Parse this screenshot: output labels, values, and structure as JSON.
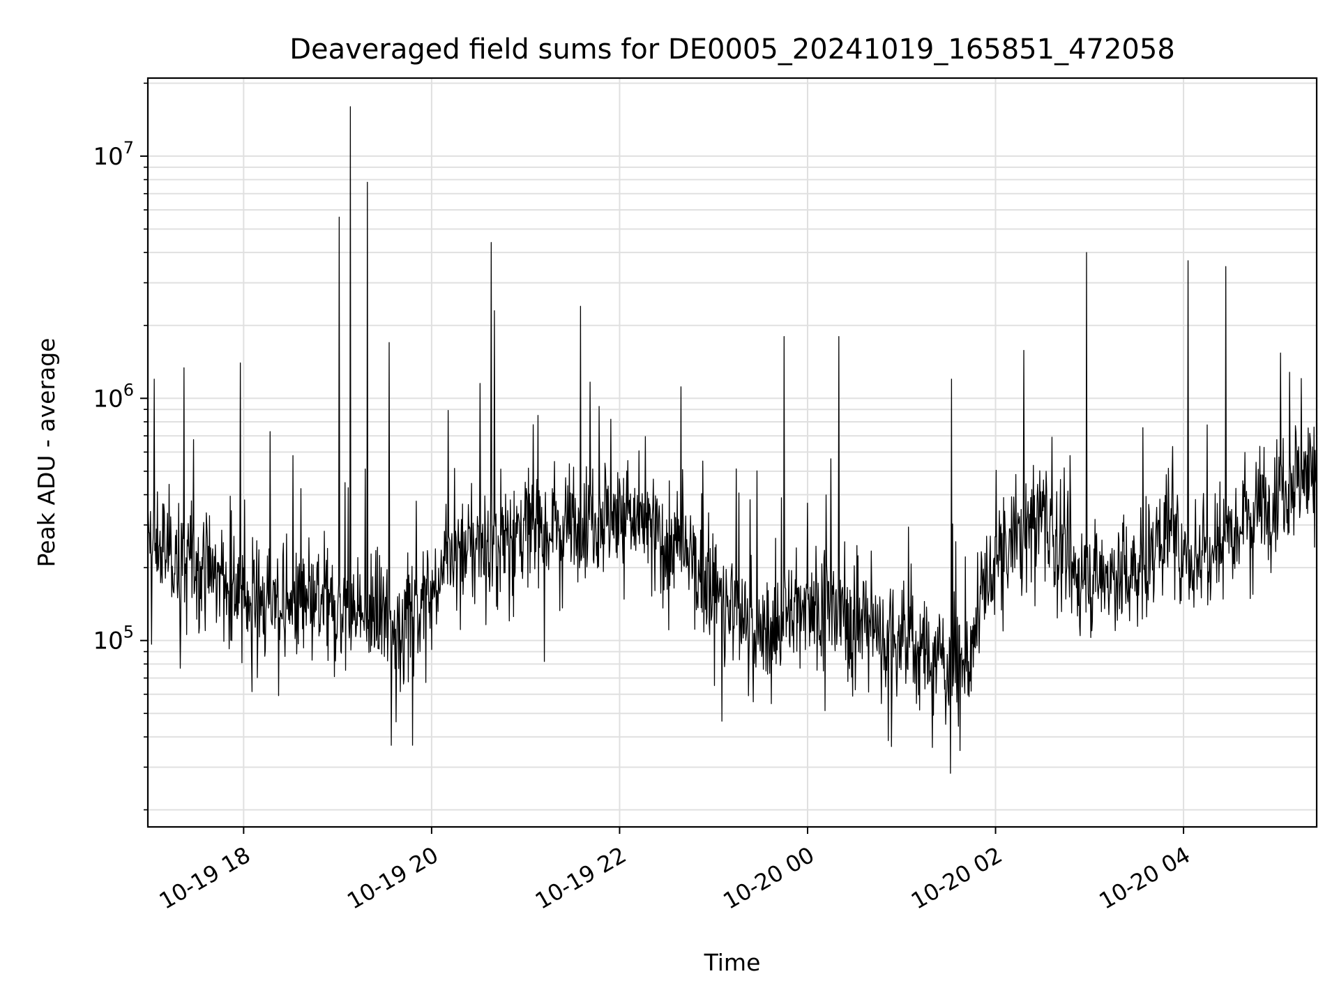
{
  "chart_data": {
    "type": "line",
    "title": "Deaveraged field sums for DE0005_20241019_165851_472058",
    "xlabel": "Time",
    "ylabel": "Peak ADU - average",
    "yscale": "log",
    "ylim": [
      17000,
      21000000
    ],
    "xlim": [
      "2024-10-19T16:58:51",
      "2024-10-20T05:25:00"
    ],
    "grid": true,
    "line_color": "#000000",
    "x_ticks": [
      {
        "t": "2024-10-19T18:00:00",
        "label": "10-19 18"
      },
      {
        "t": "2024-10-19T20:00:00",
        "label": "10-19 20"
      },
      {
        "t": "2024-10-19T22:00:00",
        "label": "10-19 22"
      },
      {
        "t": "2024-10-20T00:00:00",
        "label": "10-20 00"
      },
      {
        "t": "2024-10-20T02:00:00",
        "label": "10-20 02"
      },
      {
        "t": "2024-10-20T04:00:00",
        "label": "10-20 04"
      }
    ],
    "y_ticks": [
      {
        "value": 100000,
        "base": "10",
        "exp": "5"
      },
      {
        "value": 1000000,
        "base": "10",
        "exp": "6"
      },
      {
        "value": 10000000,
        "base": "10",
        "exp": "7"
      }
    ],
    "baseline_trend": [
      {
        "t": "2024-10-19T16:58:51",
        "y": 250000
      },
      {
        "t": "2024-10-19T17:30:00",
        "y": 210000
      },
      {
        "t": "2024-10-19T18:00:00",
        "y": 150000
      },
      {
        "t": "2024-10-19T19:00:00",
        "y": 130000
      },
      {
        "t": "2024-10-19T19:45:00",
        "y": 120000
      },
      {
        "t": "2024-10-19T20:15:00",
        "y": 230000
      },
      {
        "t": "2024-10-19T21:00:00",
        "y": 290000
      },
      {
        "t": "2024-10-19T22:00:00",
        "y": 340000
      },
      {
        "t": "2024-10-19T22:40:00",
        "y": 230000
      },
      {
        "t": "2024-10-19T23:30:00",
        "y": 100000
      },
      {
        "t": "2024-10-20T00:00:00",
        "y": 150000
      },
      {
        "t": "2024-10-20T00:45:00",
        "y": 110000
      },
      {
        "t": "2024-10-20T01:40:00",
        "y": 75000
      },
      {
        "t": "2024-10-20T02:00:00",
        "y": 210000
      },
      {
        "t": "2024-10-20T02:30:00",
        "y": 350000
      },
      {
        "t": "2024-10-20T02:50:00",
        "y": 180000
      },
      {
        "t": "2024-10-20T03:30:00",
        "y": 190000
      },
      {
        "t": "2024-10-20T03:50:00",
        "y": 300000
      },
      {
        "t": "2024-10-20T04:00:00",
        "y": 200000
      },
      {
        "t": "2024-10-20T04:30:00",
        "y": 300000
      },
      {
        "t": "2024-10-20T05:25:00",
        "y": 550000
      }
    ],
    "spikes": [
      {
        "t": "2024-10-19T17:03:00",
        "y": 1200000
      },
      {
        "t": "2024-10-19T17:58:00",
        "y": 1400000
      },
      {
        "t": "2024-10-19T19:01:00",
        "y": 5600000
      },
      {
        "t": "2024-10-19T19:08:00",
        "y": 16000000
      },
      {
        "t": "2024-10-19T19:19:00",
        "y": 7800000
      },
      {
        "t": "2024-10-19T19:33:00",
        "y": 1700000
      },
      {
        "t": "2024-10-19T20:38:00",
        "y": 4400000
      },
      {
        "t": "2024-10-19T20:40:00",
        "y": 2300000
      },
      {
        "t": "2024-10-19T21:35:00",
        "y": 2400000
      },
      {
        "t": "2024-10-19T23:45:00",
        "y": 1800000
      },
      {
        "t": "2024-10-20T00:20:00",
        "y": 1800000
      },
      {
        "t": "2024-10-20T01:32:00",
        "y": 1200000
      },
      {
        "t": "2024-10-20T02:58:00",
        "y": 4000000
      },
      {
        "t": "2024-10-20T04:03:00",
        "y": 3700000
      },
      {
        "t": "2024-10-20T04:27:00",
        "y": 3500000
      }
    ],
    "approx_points": 2200
  }
}
